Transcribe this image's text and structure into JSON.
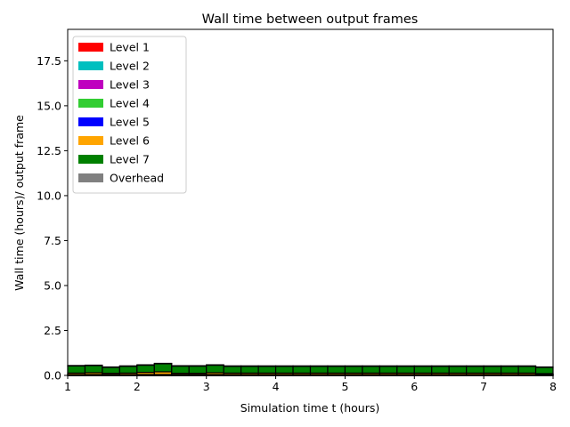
{
  "chart_data": {
    "type": "bar",
    "stacked": true,
    "title": "Wall time between output frames",
    "xlabel": "Simulation time t (hours)",
    "ylabel": "Wall time (hours)/ output frame",
    "xlim": [
      1,
      8
    ],
    "ylim": [
      0,
      19.25
    ],
    "xticks": [
      "1",
      "2",
      "3",
      "4",
      "5",
      "6",
      "7",
      "8"
    ],
    "yticks": [
      "0.0",
      "2.5",
      "5.0",
      "7.5",
      "10.0",
      "12.5",
      "15.0",
      "17.5"
    ],
    "grid": false,
    "legend_position": "top-left",
    "bar_edge_color": "#000000",
    "x_bin_edges": [
      1.0,
      1.25,
      1.5,
      1.75,
      2.0,
      2.25,
      2.5,
      2.75,
      3.0,
      3.25,
      3.5,
      3.75,
      4.0,
      4.25,
      4.5,
      4.75,
      5.0,
      5.25,
      5.5,
      5.75,
      6.0,
      6.25,
      6.5,
      6.75,
      7.0,
      7.25,
      7.5,
      7.75,
      8.0
    ],
    "series": [
      {
        "name": "Level 1",
        "color": "#ff0000",
        "values": [
          0.01,
          0.01,
          0.01,
          0.01,
          0.01,
          0.01,
          0.01,
          0.01,
          0.01,
          0.01,
          0.01,
          0.01,
          0.01,
          0.01,
          0.01,
          0.01,
          0.01,
          0.01,
          0.01,
          0.01,
          0.01,
          0.01,
          0.01,
          0.01,
          0.01,
          0.01,
          0.01,
          0.01
        ]
      },
      {
        "name": "Level 2",
        "color": "#00bfbf",
        "values": [
          0.01,
          0.01,
          0.01,
          0.01,
          0.01,
          0.01,
          0.01,
          0.01,
          0.01,
          0.01,
          0.01,
          0.01,
          0.01,
          0.01,
          0.01,
          0.01,
          0.01,
          0.01,
          0.01,
          0.01,
          0.01,
          0.01,
          0.01,
          0.01,
          0.01,
          0.01,
          0.01,
          0.01
        ]
      },
      {
        "name": "Level 3",
        "color": "#bf00bf",
        "values": [
          0.01,
          0.01,
          0.01,
          0.01,
          0.01,
          0.01,
          0.01,
          0.01,
          0.01,
          0.01,
          0.01,
          0.01,
          0.01,
          0.01,
          0.01,
          0.01,
          0.01,
          0.01,
          0.01,
          0.01,
          0.01,
          0.01,
          0.01,
          0.01,
          0.01,
          0.01,
          0.01,
          0.01
        ]
      },
      {
        "name": "Level 4",
        "color": "#32cd32",
        "values": [
          0.01,
          0.01,
          0.01,
          0.01,
          0.01,
          0.01,
          0.01,
          0.01,
          0.01,
          0.01,
          0.01,
          0.01,
          0.01,
          0.01,
          0.01,
          0.01,
          0.01,
          0.01,
          0.01,
          0.01,
          0.01,
          0.01,
          0.01,
          0.01,
          0.01,
          0.01,
          0.01,
          0.01
        ]
      },
      {
        "name": "Level 5",
        "color": "#0000ff",
        "values": [
          0.01,
          0.01,
          0.01,
          0.01,
          0.01,
          0.01,
          0.01,
          0.01,
          0.01,
          0.01,
          0.01,
          0.01,
          0.01,
          0.01,
          0.01,
          0.01,
          0.01,
          0.01,
          0.01,
          0.01,
          0.01,
          0.01,
          0.01,
          0.01,
          0.01,
          0.01,
          0.01,
          0.01
        ]
      },
      {
        "name": "Level 6",
        "color": "#ffa500",
        "values": [
          0.08,
          0.1,
          0.07,
          0.08,
          0.12,
          0.15,
          0.07,
          0.07,
          0.1,
          0.08,
          0.08,
          0.08,
          0.08,
          0.08,
          0.08,
          0.08,
          0.08,
          0.08,
          0.08,
          0.08,
          0.08,
          0.08,
          0.08,
          0.08,
          0.08,
          0.08,
          0.08,
          0.05
        ]
      },
      {
        "name": "Level 7",
        "color": "#008000",
        "values": [
          0.4,
          0.4,
          0.33,
          0.38,
          0.4,
          0.45,
          0.4,
          0.4,
          0.42,
          0.38,
          0.38,
          0.38,
          0.38,
          0.38,
          0.38,
          0.38,
          0.38,
          0.38,
          0.38,
          0.38,
          0.38,
          0.38,
          0.38,
          0.38,
          0.38,
          0.38,
          0.38,
          0.35
        ]
      },
      {
        "name": "Overhead",
        "color": "#808080",
        "values": [
          0.02,
          0.02,
          0.02,
          0.02,
          0.02,
          0.02,
          0.02,
          0.02,
          0.02,
          0.02,
          0.02,
          0.02,
          0.02,
          0.02,
          0.02,
          0.02,
          0.02,
          0.02,
          0.02,
          0.02,
          0.02,
          0.02,
          0.02,
          0.02,
          0.02,
          0.02,
          0.02,
          0.02
        ]
      }
    ]
  }
}
